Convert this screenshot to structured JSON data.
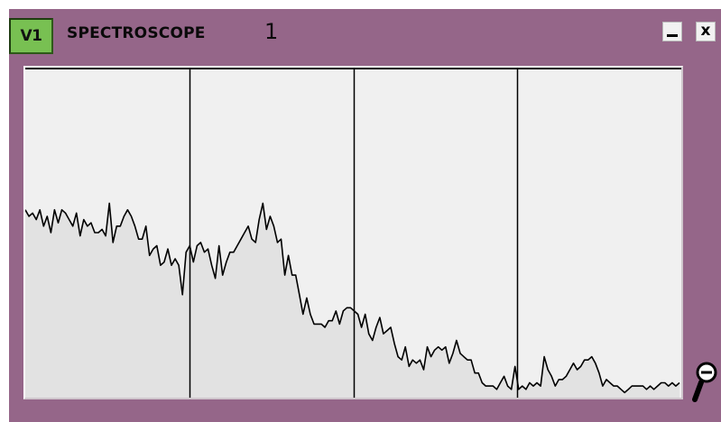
{
  "window": {
    "badge": "V1",
    "title": "SPECTROSCOPE",
    "number": "1",
    "colors": {
      "frame": "#956689",
      "badge": "#78c052",
      "plot_background": "#f0f0f0",
      "trace": "#000000",
      "fill": "#e2e2e2"
    },
    "buttons": {
      "minimize_icon": "minimize-icon",
      "close_label": "x"
    }
  },
  "zoom": {
    "icon": "zoom-out-icon"
  },
  "chart_data": {
    "type": "area",
    "grid": "vertical",
    "vertical_divisions": 4,
    "ylim": [
      0,
      100
    ],
    "xlim": [
      0,
      180
    ],
    "values": [
      57,
      55,
      56,
      54,
      57,
      52,
      55,
      50,
      57,
      53,
      57,
      56,
      54,
      52,
      56,
      49,
      54,
      52,
      53,
      50,
      50,
      51,
      49,
      59,
      47,
      52,
      52,
      55,
      57,
      55,
      52,
      48,
      48,
      52,
      43,
      45,
      46,
      40,
      41,
      45,
      40,
      42,
      40,
      31,
      44,
      46,
      41,
      46,
      47,
      44,
      45,
      40,
      36,
      46,
      37,
      41,
      44,
      44,
      46,
      48,
      50,
      52,
      48,
      47,
      54,
      59,
      51,
      55,
      52,
      47,
      48,
      37,
      43,
      37,
      37,
      31,
      25,
      30,
      25,
      22,
      22,
      22,
      21,
      23,
      23,
      26,
      22,
      26,
      27,
      27,
      26,
      25,
      21,
      25,
      19,
      17,
      21,
      24,
      19,
      20,
      21,
      16,
      12,
      11,
      15,
      9,
      11,
      10,
      11,
      8,
      15,
      12,
      14,
      15,
      14,
      15,
      10,
      13,
      17,
      13,
      12,
      11,
      11,
      7,
      7,
      4,
      3,
      3,
      3,
      2,
      4,
      6,
      3,
      2,
      9,
      2,
      3,
      2,
      4,
      3,
      4,
      3,
      12,
      8,
      6,
      3,
      5,
      5,
      6,
      8,
      10,
      8,
      9,
      11,
      11,
      12,
      10,
      7,
      3,
      5,
      4,
      3,
      3,
      2,
      1,
      2,
      3,
      3,
      3,
      3,
      2,
      3,
      2,
      3,
      4,
      4,
      3,
      4,
      3,
      4
    ]
  }
}
